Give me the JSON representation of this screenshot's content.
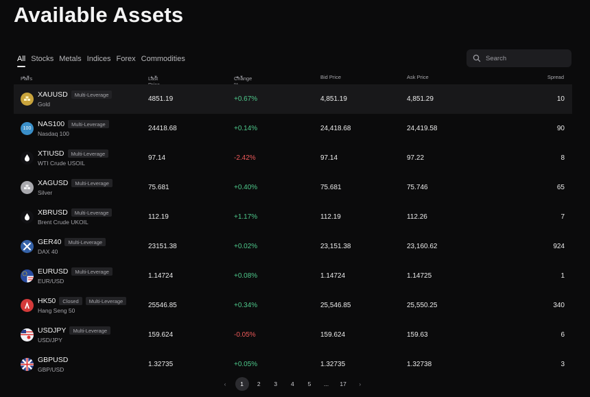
{
  "page_title": "Available Assets",
  "tabs": [
    "All",
    "Stocks",
    "Metals",
    "Indices",
    "Forex",
    "Commodities"
  ],
  "search": {
    "placeholder": "Search"
  },
  "columns": {
    "pairs": "Pairs",
    "last_price": "Last Price",
    "change": "Change %",
    "bid": "Bid Price",
    "ask": "Ask Price",
    "spread": "Spread"
  },
  "rows": [
    {
      "symbol": "XAUUSD",
      "badges": [
        "Multi-Leverage"
      ],
      "name": "Gold",
      "last": "4851.19",
      "change": "+0.67%",
      "bid": "4,851.19",
      "ask": "4,851.29",
      "spread": "10",
      "icon": "gold-bars-icon",
      "icon_color": "#c9a43c"
    },
    {
      "symbol": "NAS100",
      "badges": [
        "Multi-Leverage"
      ],
      "name": "Nasdaq 100",
      "last": "24418.68",
      "change": "+0.14%",
      "bid": "24,418.68",
      "ask": "24,419.58",
      "spread": "90",
      "icon": "nasdaq-100-icon",
      "icon_color": "#3a8fc9",
      "icon_text": "100"
    },
    {
      "symbol": "XTIUSD",
      "badges": [
        "Multi-Leverage"
      ],
      "name": "WTI Crude USOIL",
      "last": "97.14",
      "change": "-2.42%",
      "bid": "97.14",
      "ask": "97.22",
      "spread": "8",
      "icon": "oil-drop-icon",
      "icon_color": "#111114"
    },
    {
      "symbol": "XAGUSD",
      "badges": [
        "Multi-Leverage"
      ],
      "name": "Silver",
      "last": "75.681",
      "change": "+0.40%",
      "bid": "75.681",
      "ask": "75.746",
      "spread": "65",
      "icon": "silver-bars-icon",
      "icon_color": "#a9a9ae"
    },
    {
      "symbol": "XBRUSD",
      "badges": [
        "Multi-Leverage"
      ],
      "name": "Brent Crude UKOIL",
      "last": "112.19",
      "change": "+1.17%",
      "bid": "112.19",
      "ask": "112.26",
      "spread": "7",
      "icon": "oil-drop-icon",
      "icon_color": "#111114"
    },
    {
      "symbol": "GER40",
      "badges": [
        "Multi-Leverage"
      ],
      "name": "DAX 40",
      "last": "23151.38",
      "change": "+0.02%",
      "bid": "23,151.38",
      "ask": "23,160.62",
      "spread": "924",
      "icon": "dax-icon",
      "icon_color": "#3562a8"
    },
    {
      "symbol": "EURUSD",
      "badges": [
        "Multi-Leverage"
      ],
      "name": "EUR/USD",
      "last": "1.14724",
      "change": "+0.08%",
      "bid": "1.14724",
      "ask": "1.14725",
      "spread": "1",
      "icon": "eu-us-flag-icon",
      "icon_color": "#2a4ca0"
    },
    {
      "symbol": "HK50",
      "badges": [
        "Closed",
        "Multi-Leverage"
      ],
      "name": "Hang Seng 50",
      "last": "25546.85",
      "change": "+0.34%",
      "bid": "25,546.85",
      "ask": "25,550.25",
      "spread": "340",
      "icon": "hang-seng-icon",
      "icon_color": "#d43a3a"
    },
    {
      "symbol": "USDJPY",
      "badges": [
        "Multi-Leverage"
      ],
      "name": "USD/JPY",
      "last": "159.624",
      "change": "-0.05%",
      "bid": "159.624",
      "ask": "159.63",
      "spread": "6",
      "icon": "us-jp-flag-icon",
      "icon_color": "#e8e8ee"
    },
    {
      "symbol": "GBPUSD",
      "badges": [],
      "name": "GBP/USD",
      "last": "1.32735",
      "change": "+0.05%",
      "bid": "1.32735",
      "ask": "1.32738",
      "spread": "3",
      "icon": "gb-us-flag-icon",
      "icon_color": "#2a3f8a"
    }
  ],
  "pagination": {
    "prev": "‹",
    "pages": [
      "1",
      "2",
      "3",
      "4",
      "5",
      "...",
      "17"
    ],
    "current": "1",
    "next": "›"
  },
  "colors": {
    "positive": "#4ec88b",
    "negative": "#ef5a5a",
    "background": "#0b0b0c"
  }
}
